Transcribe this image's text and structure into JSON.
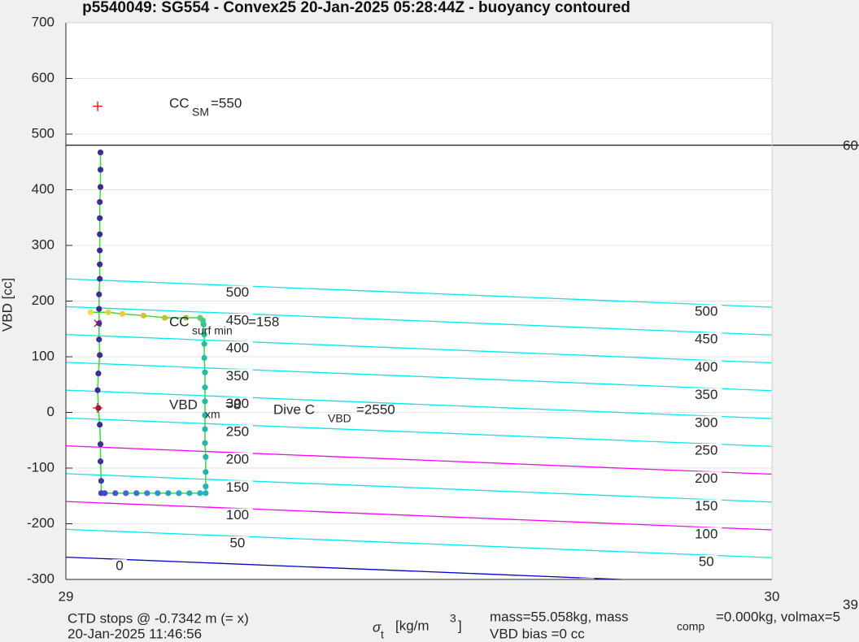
{
  "chart_data": {
    "type": "line",
    "title": "p5540049: SG554 - Convex25 20-Jan-2025 05:28:44Z - buoyancy contoured",
    "y_label": "VBD [cc]",
    "x_label": {
      "symbol": "σ",
      "symbol_sub": "t",
      "unit": "[kg/m",
      "unit_sup": "3",
      "close": "]"
    },
    "xlim": [
      29,
      30
    ],
    "ylim": [
      -300,
      700
    ],
    "xticks": [
      29,
      30
    ],
    "yticks": [
      -300,
      -200,
      -100,
      0,
      100,
      200,
      300,
      400,
      500,
      600,
      700
    ],
    "grid": true,
    "reference_line": {
      "y": 480,
      "color": "#000000"
    },
    "contours": [
      {
        "level": 500,
        "color": "#00e8f0",
        "x": [
          29,
          30
        ],
        "y": [
          240,
          189
        ]
      },
      {
        "level": 450,
        "color": "#00e8f0",
        "x": [
          29,
          30
        ],
        "y": [
          190,
          139
        ]
      },
      {
        "level": 400,
        "color": "#00e8f0",
        "x": [
          29,
          30
        ],
        "y": [
          140,
          89
        ]
      },
      {
        "level": 350,
        "color": "#00e8f0",
        "x": [
          29,
          30
        ],
        "y": [
          90,
          39
        ]
      },
      {
        "level": 300,
        "color": "#00e8f0",
        "x": [
          29,
          30
        ],
        "y": [
          40,
          -11
        ]
      },
      {
        "level": 250,
        "color": "#00e8f0",
        "x": [
          29,
          30
        ],
        "y": [
          -10,
          -61
        ]
      },
      {
        "level": 200,
        "color": "#ff00ff",
        "x": [
          29,
          30
        ],
        "y": [
          -60,
          -111
        ]
      },
      {
        "level": 150,
        "color": "#00e8f0",
        "x": [
          29,
          30
        ],
        "y": [
          -110,
          -161
        ]
      },
      {
        "level": 100,
        "color": "#ff00ff",
        "x": [
          29,
          30
        ],
        "y": [
          -160,
          -211
        ]
      },
      {
        "level": 50,
        "color": "#00e8f0",
        "x": [
          29,
          30
        ],
        "y": [
          -210,
          -261
        ]
      },
      {
        "level": 0,
        "color": "#0000cc",
        "x": [
          29,
          30
        ],
        "y": [
          -260,
          -311
        ]
      }
    ],
    "trace": {
      "line_color": "#33dd33",
      "x": [
        29.049,
        29.049,
        29.049,
        29.048,
        29.048,
        29.048,
        29.048,
        29.048,
        29.048,
        29.047,
        29.047,
        29.047,
        29.047,
        29.048,
        29.046,
        29.045,
        29.046,
        29.048,
        29.049,
        29.049,
        29.05,
        29.05,
        29.055,
        29.07,
        29.085,
        29.1,
        29.115,
        29.13,
        29.145,
        29.16,
        29.175,
        29.19,
        29.198,
        29.198,
        29.198,
        29.198,
        29.197,
        29.197,
        29.197,
        29.197,
        29.197,
        29.197,
        29.196,
        29.196,
        29.196,
        29.195,
        29.194,
        29.19,
        29.17,
        29.14,
        29.11,
        29.08,
        29.06,
        29.035
      ],
      "y": [
        467,
        436,
        405,
        378,
        349,
        320,
        291,
        266,
        240,
        212,
        186,
        160,
        131,
        103,
        70,
        40,
        8,
        -22,
        -57,
        -88,
        -123,
        -145,
        -145,
        -145,
        -145,
        -145,
        -145,
        -145,
        -145,
        -145,
        -145,
        -145,
        -145,
        -133,
        -107,
        -80,
        -55,
        -30,
        -5,
        20,
        45,
        72,
        98,
        123,
        140,
        158,
        165,
        170,
        170,
        170,
        174,
        177,
        180,
        180
      ],
      "colors": [
        "#3b2c96",
        "#3b2c96",
        "#3b2c96",
        "#3b2c96",
        "#3b2c96",
        "#3b2c96",
        "#3b2c96",
        "#3b2c96",
        "#3b2c96",
        "#3b2c96",
        "#3b2c96",
        "#3b2c96",
        "#3b2c96",
        "#3b2c96",
        "#3b2c96",
        "#3b2c96",
        "#3b2c96",
        "#3b2c96",
        "#3b2c96",
        "#3d30a0",
        "#3f38b0",
        "#4040c0",
        "#4048c8",
        "#4058cc",
        "#4068d0",
        "#3a74d2",
        "#3580d0",
        "#3090cc",
        "#2a9cc8",
        "#28a4c4",
        "#24acc0",
        "#22b0bc",
        "#20b4b8",
        "#20b4b4",
        "#20b6b0",
        "#20b6ac",
        "#20b8aa",
        "#20b8a8",
        "#22baa6",
        "#22baa4",
        "#24bca2",
        "#24bca0",
        "#26be9e",
        "#28be9c",
        "#2cc09a",
        "#30c098",
        "#40c890",
        "#60cc70",
        "#90c848",
        "#c0c030",
        "#e0bc30",
        "#f0c838",
        "#f4d040",
        "#f8dc40"
      ]
    },
    "markers": [
      {
        "x": 29.045,
        "y": 550,
        "symbol": "+",
        "color": "#ff0000"
      },
      {
        "x": 29.045,
        "y": 160,
        "symbol": "x",
        "color": "#8a1a6a"
      },
      {
        "x": 29.045,
        "y": 8,
        "symbol": "+",
        "color": "#ff0000"
      }
    ],
    "annotations": [
      {
        "text": "CC",
        "sub": "SM",
        "rest": "=550"
      },
      {
        "text": "CC",
        "sub": "surf min",
        "rest": "=158"
      },
      {
        "text": "VBD",
        "sub": "xm",
        "rest": "=8"
      },
      {
        "text": "Dive C",
        "sub": "VBD",
        "rest": "=2550"
      }
    ],
    "edge_labels": [
      "60",
      "39"
    ],
    "footer_left": [
      "CTD stops @ -0.7342 m (= x)",
      "20-Jan-2025 11:46:56"
    ],
    "footer_right": {
      "line1": "mass=55.058kg, mass",
      "sub": "comp",
      "line1_rest": "=0.000kg, volmax=5",
      "line2": "VBD bias =0 cc"
    }
  }
}
